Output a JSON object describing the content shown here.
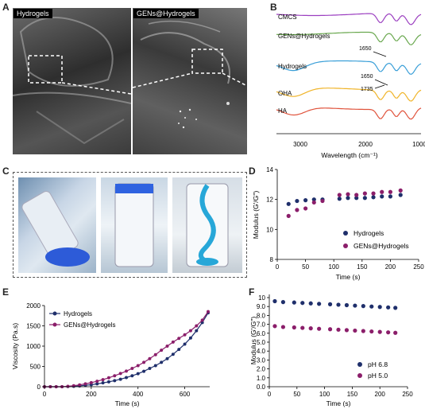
{
  "panels": {
    "a": "A",
    "b": "B",
    "c": "C",
    "d": "D",
    "e": "E",
    "f": "F"
  },
  "sem": {
    "left_label": "Hydrogels",
    "right_label": "GENs@Hydrogels"
  },
  "colors": {
    "navy": "#1f2f6b",
    "purple": "#8b1e6a",
    "cmcs": "#9b3fc0",
    "gen": "#6aa84f",
    "hydro": "#3a9fd8",
    "oha": "#f0b429",
    "ha": "#e0533c"
  },
  "chart_data": [
    {
      "id": "ftir",
      "type": "line",
      "title": "",
      "xlabel": "Wavelength (cm⁻¹)",
      "xticks": [
        "3000",
        "2000",
        "1000"
      ],
      "xlim": [
        3700,
        1000
      ],
      "series": [
        {
          "name": "CMCS",
          "color": "#9b3fc0"
        },
        {
          "name": "GENs@Hydrogels",
          "color": "#6aa84f"
        },
        {
          "name": "Hydrogels",
          "color": "#3a9fd8"
        },
        {
          "name": "OHA",
          "color": "#f0b429"
        },
        {
          "name": "HA",
          "color": "#e0533c"
        }
      ],
      "annotations": [
        "1650",
        "1650",
        "1735"
      ]
    },
    {
      "id": "modulus",
      "type": "scatter",
      "xlabel": "Time (s)",
      "ylabel": "Modulus (G'/G'')",
      "xlim": [
        0,
        250
      ],
      "ylim": [
        8,
        14
      ],
      "xticks": [
        "0",
        "50",
        "100",
        "150",
        "200",
        "250"
      ],
      "yticks": [
        "8",
        "10",
        "12",
        "14"
      ],
      "x": [
        20,
        35,
        50,
        65,
        80,
        110,
        125,
        140,
        155,
        170,
        185,
        200,
        218
      ],
      "series": [
        {
          "name": "Hydrogels",
          "color": "#1f2f6b",
          "values": [
            11.7,
            11.9,
            11.95,
            12.0,
            12.0,
            12.05,
            12.1,
            12.1,
            12.1,
            12.15,
            12.2,
            12.2,
            12.3
          ]
        },
        {
          "name": "GENs@Hydrogels",
          "color": "#8b1e6a",
          "values": [
            10.9,
            11.3,
            11.4,
            11.8,
            11.9,
            12.3,
            12.35,
            12.3,
            12.4,
            12.4,
            12.5,
            12.5,
            12.6
          ]
        }
      ],
      "legend": "bottom-right"
    },
    {
      "id": "viscosity",
      "type": "line",
      "xlabel": "Time (s)",
      "ylabel": "Viscosity (Pa.s)",
      "xlim": [
        0,
        700
      ],
      "ylim": [
        0,
        2000
      ],
      "xticks": [
        "0",
        "200",
        "400",
        "600"
      ],
      "yticks": [
        "0",
        "500",
        "1000",
        "1500",
        "2000"
      ],
      "x": [
        0,
        25,
        50,
        75,
        100,
        125,
        150,
        175,
        200,
        225,
        250,
        275,
        300,
        325,
        350,
        375,
        400,
        425,
        450,
        475,
        500,
        525,
        550,
        575,
        600,
        625,
        650,
        675,
        700
      ],
      "series": [
        {
          "name": "Hydrogels",
          "color": "#1f2f6b",
          "values": [
            0,
            0,
            0,
            0,
            5,
            10,
            20,
            35,
            50,
            70,
            95,
            120,
            150,
            185,
            225,
            270,
            320,
            380,
            450,
            520,
            600,
            690,
            800,
            920,
            1050,
            1200,
            1380,
            1580,
            1820
          ]
        },
        {
          "name": "GENs@Hydrogels",
          "color": "#8b1e6a",
          "values": [
            0,
            0,
            0,
            0,
            10,
            25,
            45,
            70,
            100,
            135,
            175,
            220,
            270,
            325,
            385,
            450,
            520,
            600,
            690,
            790,
            900,
            1000,
            1100,
            1190,
            1280,
            1380,
            1500,
            1640,
            1850
          ]
        }
      ],
      "legend": "top-left"
    },
    {
      "id": "ph",
      "type": "scatter",
      "xlabel": "Time (s)",
      "ylabel": "Modulus (G'/G'')",
      "xlim": [
        0,
        250
      ],
      "ylim": [
        0,
        10
      ],
      "xticks": [
        "0",
        "50",
        "100",
        "150",
        "200",
        "250"
      ],
      "yticks": [
        "0.0",
        "1.0",
        "2.0",
        "3.0",
        "4.0",
        "5.0",
        "6.0",
        "7.0",
        "8.0",
        "9.0",
        "10"
      ],
      "x": [
        10,
        25,
        45,
        60,
        75,
        90,
        110,
        125,
        140,
        155,
        170,
        185,
        200,
        215,
        228
      ],
      "series": [
        {
          "name": "pH 6.8",
          "color": "#1f2f6b",
          "values": [
            9.6,
            9.5,
            9.45,
            9.4,
            9.35,
            9.3,
            9.25,
            9.2,
            9.15,
            9.1,
            9.05,
            9.0,
            8.95,
            8.9,
            8.85
          ]
        },
        {
          "name": "pH 5.0",
          "color": "#8b1e6a",
          "values": [
            6.8,
            6.7,
            6.65,
            6.6,
            6.55,
            6.5,
            6.45,
            6.4,
            6.35,
            6.3,
            6.25,
            6.2,
            6.15,
            6.1,
            6.05
          ]
        }
      ],
      "legend": "bottom-right"
    }
  ]
}
